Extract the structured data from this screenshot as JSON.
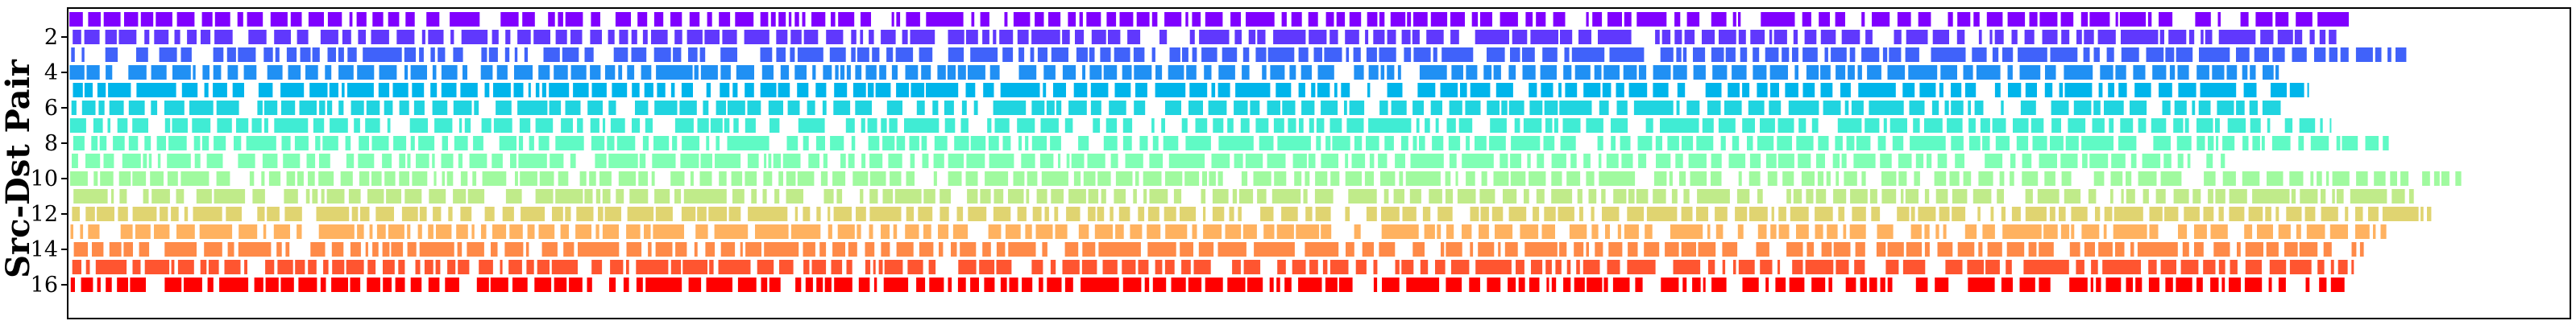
{
  "chart_data": {
    "type": "broken-barh",
    "ylabel": "Src-Dst Pair",
    "y_ticks": [
      2,
      4,
      6,
      8,
      10,
      12,
      14,
      16
    ],
    "y_range": [
      0.5,
      16.5
    ],
    "y_inverted": true,
    "x_ticks_shown": false,
    "grid": false,
    "series": [
      {
        "pair": 1,
        "color": "#8000ff",
        "end": 0.912
      },
      {
        "pair": 2,
        "color": "#6038fd",
        "end": 0.907
      },
      {
        "pair": 3,
        "color": "#4062fa",
        "end": 0.935
      },
      {
        "pair": 4,
        "color": "#2090f4",
        "end": 0.884
      },
      {
        "pair": 5,
        "color": "#00b5eb",
        "end": 0.896
      },
      {
        "pair": 6,
        "color": "#20d4e0",
        "end": 0.887
      },
      {
        "pair": 7,
        "color": "#40ecd4",
        "end": 0.905
      },
      {
        "pair": 8,
        "color": "#60fac5",
        "end": 0.928
      },
      {
        "pair": 9,
        "color": "#80ffb4",
        "end": 0.866
      },
      {
        "pair": 10,
        "color": "#a0fa9f",
        "end": 0.957
      },
      {
        "pair": 11,
        "color": "#c0eb8a",
        "end": 0.938
      },
      {
        "pair": 12,
        "color": "#e0d471",
        "end": 0.945
      },
      {
        "pair": 13,
        "color": "#ffb260",
        "end": 0.927
      },
      {
        "pair": 14,
        "color": "#ff8a48",
        "end": 0.918
      },
      {
        "pair": 15,
        "color": "#ff5530",
        "end": 0.914
      },
      {
        "pair": 16,
        "color": "#ff0000",
        "end": 0.912
      }
    ]
  }
}
